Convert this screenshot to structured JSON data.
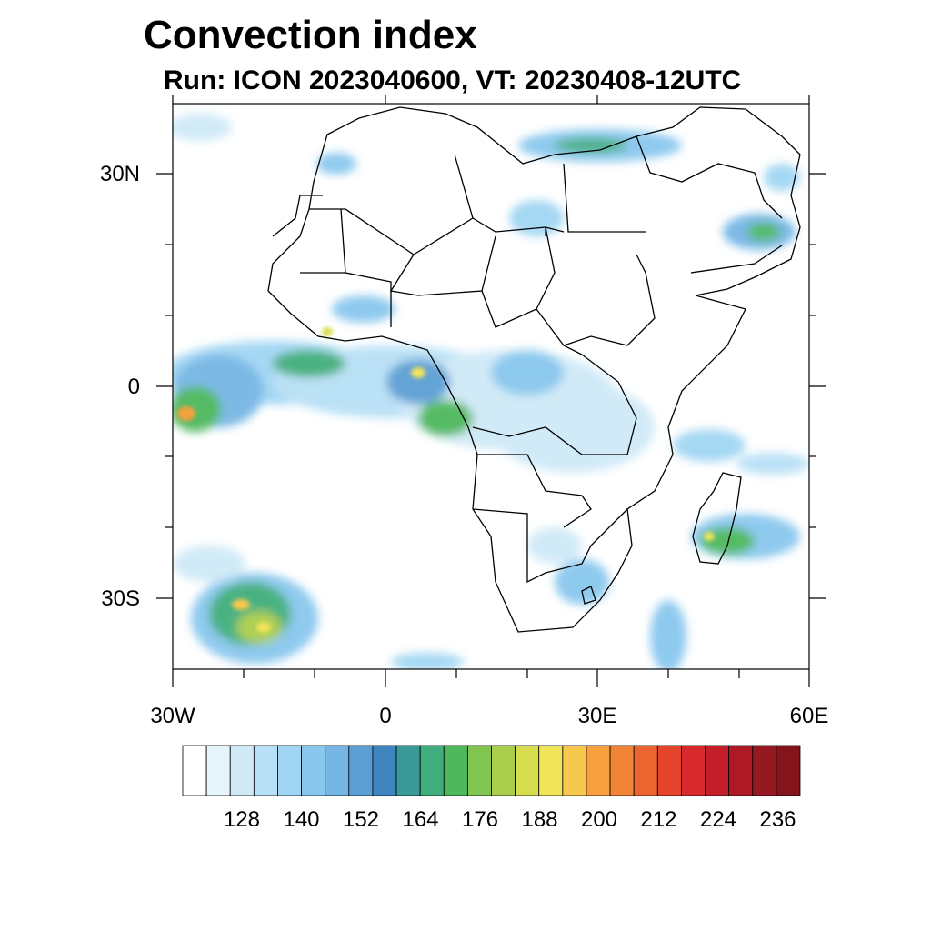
{
  "title": "Convection index",
  "subtitle": "Run: ICON 2023040600,  VT: 20230408-12UTC",
  "map": {
    "region": "Africa",
    "lon_range": [
      -30,
      60
    ],
    "lat_range": [
      -40,
      40
    ],
    "lat_labels": [
      "30N",
      "0",
      "30S"
    ],
    "lon_labels": [
      "30W",
      "0",
      "30E",
      "60E"
    ]
  },
  "colorbar": {
    "colors": [
      "#ffffff",
      "#e6f4fb",
      "#cfe9f7",
      "#b8e0f6",
      "#a0d6f3",
      "#89c7ee",
      "#76b6e4",
      "#5c9fd4",
      "#3f86c0",
      "#3a9a98",
      "#3fae7c",
      "#4db85c",
      "#82c450",
      "#aacd4c",
      "#d6de50",
      "#f0e45a",
      "#f8c84c",
      "#f6a03e",
      "#f28436",
      "#ec6430",
      "#e4442c",
      "#d82a2c",
      "#c41e2a",
      "#ad1a26",
      "#961820",
      "#84141c"
    ],
    "labels": [
      "128",
      "140",
      "152",
      "164",
      "176",
      "188",
      "200",
      "212",
      "224",
      "236"
    ]
  }
}
